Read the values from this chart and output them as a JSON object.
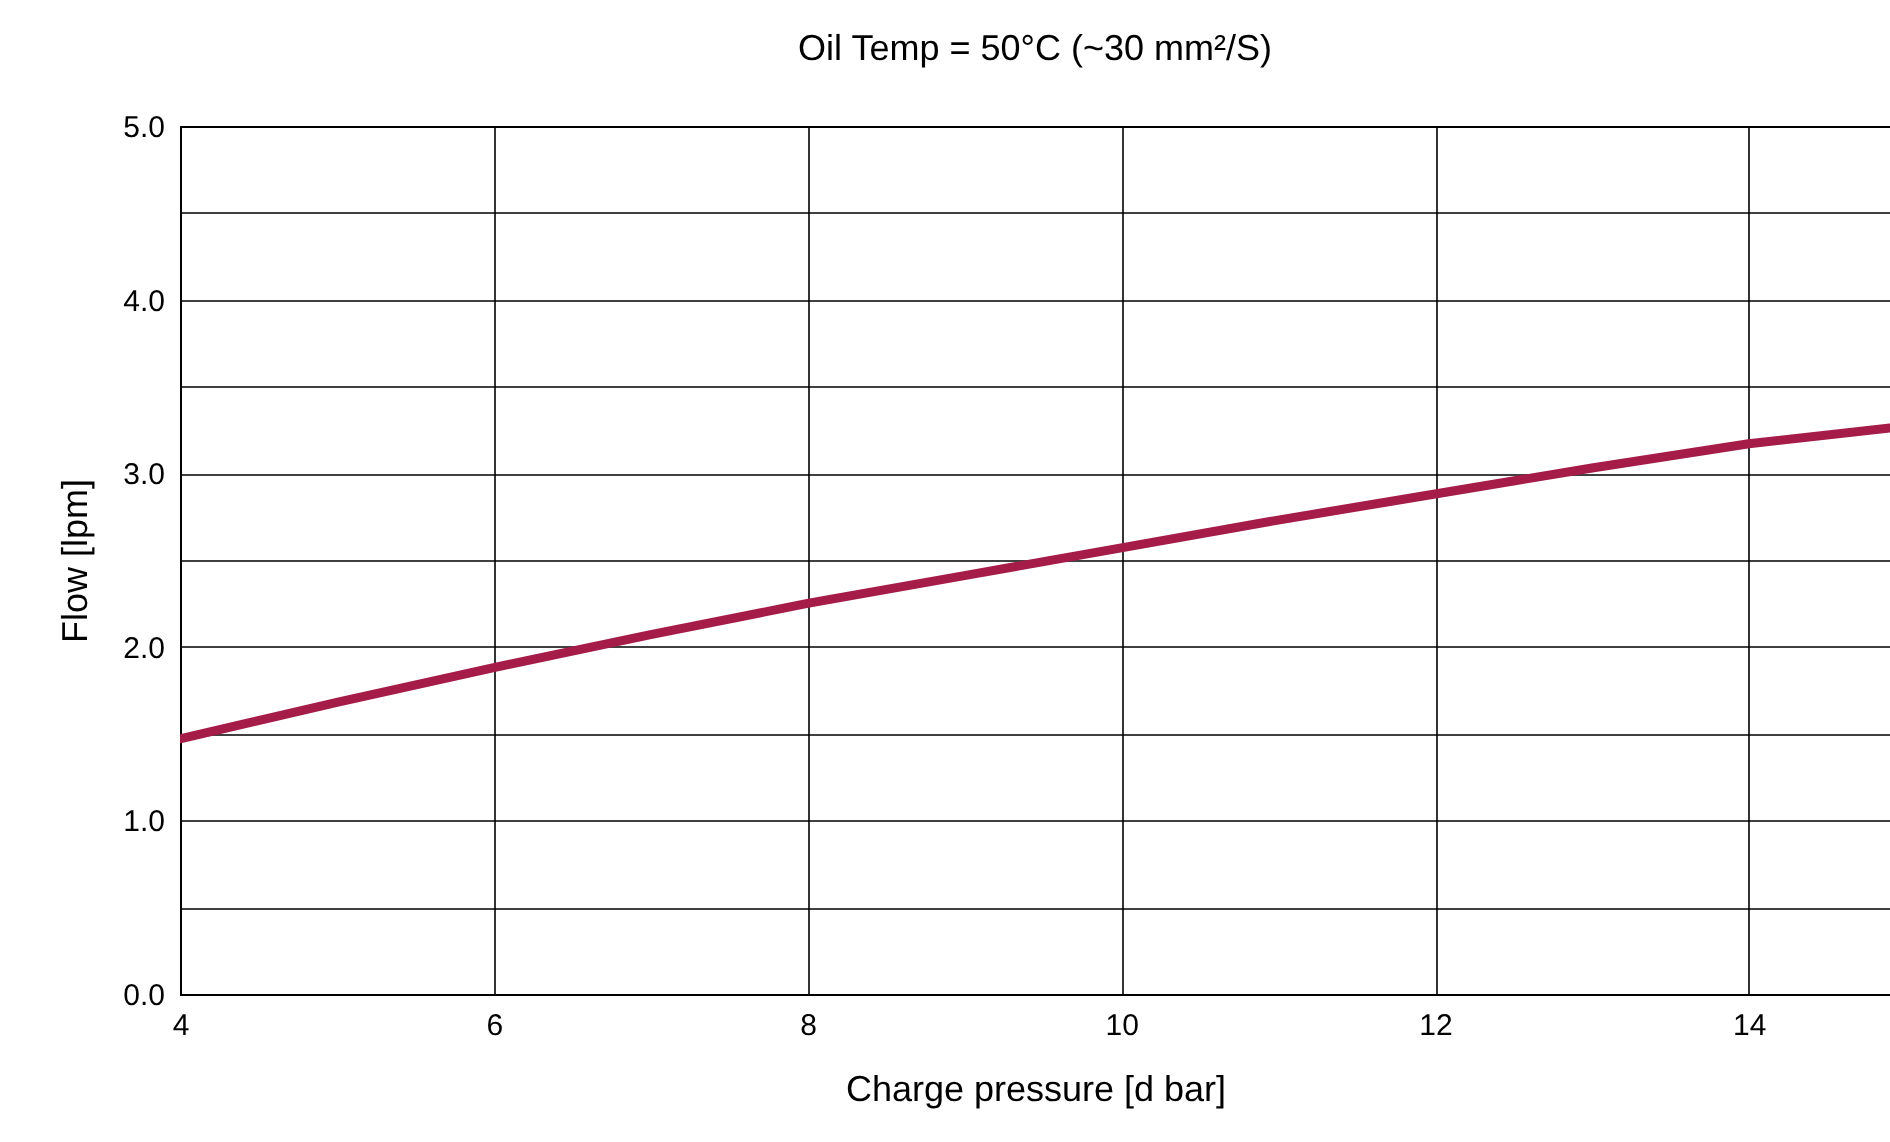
{
  "chart_data": {
    "type": "line",
    "title": "Oil Temp = 50°C (~30 mm²/S)",
    "xlabel": "Charge pressure  [d bar]",
    "ylabel": "Flow [lpm]",
    "x": [
      4,
      5,
      6,
      7,
      8,
      9,
      10,
      11,
      12,
      13,
      14,
      14.9
    ],
    "series": [
      {
        "color": "#a51c48",
        "values": [
          1.47,
          1.68,
          1.88,
          2.07,
          2.25,
          2.41,
          2.57,
          2.73,
          2.88,
          3.03,
          3.17,
          3.26
        ]
      }
    ],
    "xlim": [
      4,
      14.9
    ],
    "ylim": [
      0,
      5
    ],
    "xticks": [
      4,
      6,
      8,
      10,
      12,
      14
    ],
    "yticks": [
      {
        "value": 0,
        "label": "0.0"
      },
      {
        "value": 0.5,
        "label": null
      },
      {
        "value": 1,
        "label": "1.0"
      },
      {
        "value": 1.5,
        "label": null
      },
      {
        "value": 2,
        "label": "2.0"
      },
      {
        "value": 2.5,
        "label": null
      },
      {
        "value": 3,
        "label": "3.0"
      },
      {
        "value": 3.5,
        "label": null
      },
      {
        "value": 4,
        "label": "4.0"
      },
      {
        "value": 4.5,
        "label": null
      },
      {
        "value": 5,
        "label": "5.0"
      }
    ],
    "grid": true,
    "line_style": "solid",
    "marker": "none"
  }
}
